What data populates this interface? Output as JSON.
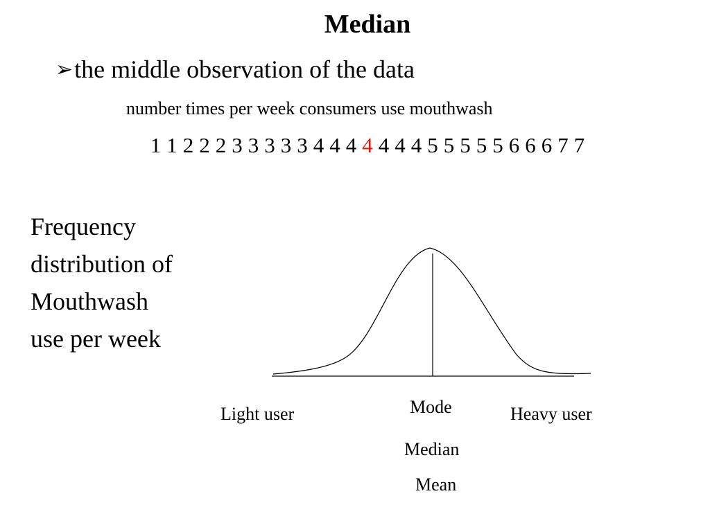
{
  "slide": {
    "title": "Median",
    "bullet_arrow": "➢",
    "bullet_text": "the middle observation of the data",
    "data_caption": "number times per week consumers use mouthwash",
    "data_values": [
      "1",
      "1",
      "2",
      "2",
      "2",
      "3",
      "3",
      "3",
      "3",
      "3",
      "4",
      "4",
      "4",
      "4",
      "4",
      "4",
      "4",
      "5",
      "5",
      "5",
      "5",
      "5",
      "6",
      "6",
      "6",
      "7",
      "7"
    ],
    "highlight_index": 13,
    "highlight_color": "#e8170e"
  },
  "diagram": {
    "description_lines": [
      "Frequency",
      "distribution of",
      "Mouthwash",
      "use per week"
    ],
    "left_label": "Light user",
    "right_label": "Heavy user",
    "center_labels": [
      "Mode",
      "Median",
      "Mean"
    ]
  }
}
